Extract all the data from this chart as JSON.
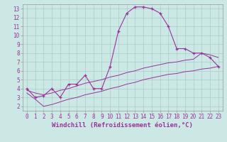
{
  "xlabel": "Windchill (Refroidissement éolien,°C)",
  "bg_color": "#cce8e5",
  "line_color": "#993399",
  "grid_color": "#aacccc",
  "hours": [
    0,
    1,
    2,
    3,
    4,
    5,
    6,
    7,
    8,
    9,
    10,
    11,
    12,
    13,
    14,
    15,
    16,
    17,
    18,
    19,
    20,
    21,
    22,
    23
  ],
  "main_line": [
    4.0,
    3.0,
    3.2,
    4.0,
    3.0,
    4.5,
    4.5,
    5.5,
    4.0,
    4.0,
    6.5,
    10.5,
    12.5,
    13.2,
    13.2,
    13.0,
    12.5,
    11.0,
    8.5,
    8.5,
    8.0,
    8.0,
    7.5,
    6.5
  ],
  "band_upper": [
    3.8,
    3.5,
    3.3,
    3.5,
    3.8,
    4.0,
    4.3,
    4.6,
    4.8,
    5.0,
    5.3,
    5.5,
    5.8,
    6.0,
    6.3,
    6.5,
    6.7,
    6.9,
    7.0,
    7.2,
    7.3,
    8.0,
    7.8,
    7.5
  ],
  "band_lower": [
    3.5,
    2.8,
    2.0,
    2.2,
    2.5,
    2.8,
    3.0,
    3.3,
    3.5,
    3.7,
    4.0,
    4.2,
    4.5,
    4.7,
    5.0,
    5.2,
    5.4,
    5.6,
    5.7,
    5.9,
    6.0,
    6.2,
    6.3,
    6.5
  ],
  "ylim": [
    1.5,
    13.5
  ],
  "xlim": [
    -0.5,
    23.5
  ],
  "yticks": [
    2,
    3,
    4,
    5,
    6,
    7,
    8,
    9,
    10,
    11,
    12,
    13
  ],
  "xticks": [
    0,
    1,
    2,
    3,
    4,
    5,
    6,
    7,
    8,
    9,
    10,
    11,
    12,
    13,
    14,
    15,
    16,
    17,
    18,
    19,
    20,
    21,
    22,
    23
  ],
  "tick_fontsize": 5.5,
  "xlabel_fontsize": 6.5
}
